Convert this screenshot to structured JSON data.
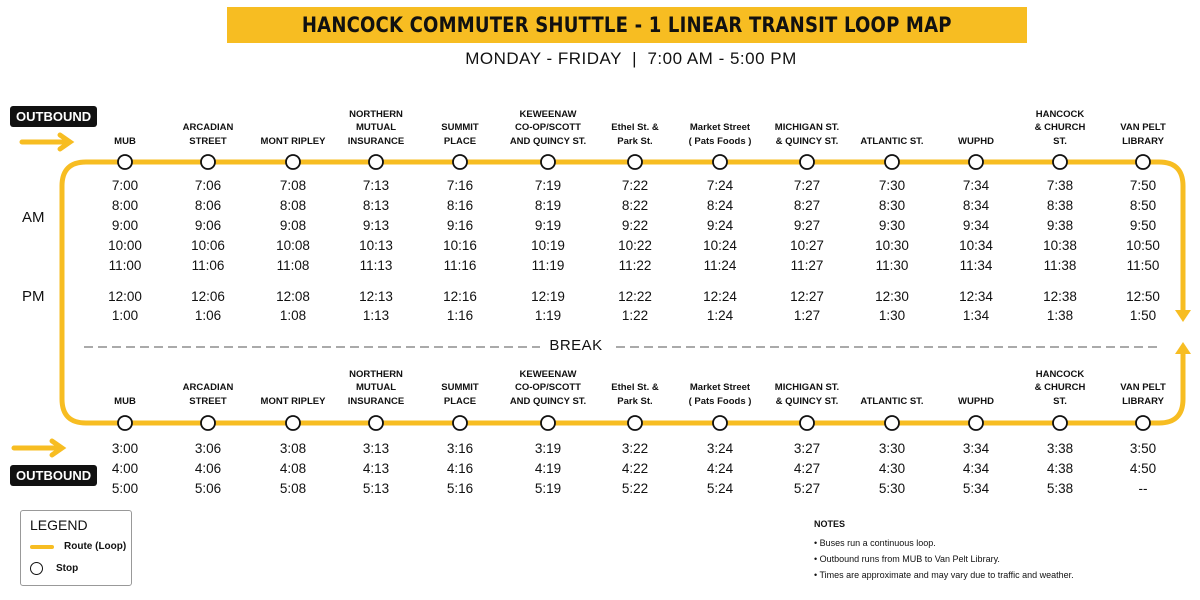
{
  "header": {
    "title": "HANCOCK COMMUTER SHUTTLE - 1 LINEAR TRANSIT LOOP MAP",
    "subtitle": "MONDAY - FRIDAY  |  7:00 AM - 5:00 PM"
  },
  "colors": {
    "route": "#f7bd22",
    "badge": "#111111"
  },
  "outbound_label": "OUTBOUND",
  "period_labels": {
    "am": "AM",
    "pm": "PM"
  },
  "break_label": "BREAK",
  "stops": [
    [
      "MUB"
    ],
    [
      "ARCADIAN",
      "STREET"
    ],
    [
      "MONT RIPLEY"
    ],
    [
      "NORTHERN",
      "MUTUAL",
      "INSURANCE"
    ],
    [
      "SUMMIT",
      "PLACE"
    ],
    [
      "KEWEENAW",
      "CO-OP/SCOTT",
      "AND QUINCY ST."
    ],
    [
      "Ethel St. &",
      "Park St."
    ],
    [
      "Market Street",
      "( Pats Foods )"
    ],
    [
      "MICHIGAN ST.",
      "& QUINCY ST."
    ],
    [
      "ATLANTIC ST."
    ],
    [
      "WUPHD"
    ],
    [
      "HANCOCK",
      "& CHURCH",
      "ST."
    ],
    [
      "VAN PELT",
      "LIBRARY"
    ]
  ],
  "schedule_top": [
    [
      "7:00",
      "7:06",
      "7:08",
      "7:13",
      "7:16",
      "7:19",
      "7:22",
      "7:24",
      "7:27",
      "7:30",
      "7:34",
      "7:38",
      "7:50"
    ],
    [
      "8:00",
      "8:06",
      "8:08",
      "8:13",
      "8:16",
      "8:19",
      "8:22",
      "8:24",
      "8:27",
      "8:30",
      "8:34",
      "8:38",
      "8:50"
    ],
    [
      "9:00",
      "9:06",
      "9:08",
      "9:13",
      "9:16",
      "9:19",
      "9:22",
      "9:24",
      "9:27",
      "9:30",
      "9:34",
      "9:38",
      "9:50"
    ],
    [
      "10:00",
      "10:06",
      "10:08",
      "10:13",
      "10:16",
      "10:19",
      "10:22",
      "10:24",
      "10:27",
      "10:30",
      "10:34",
      "10:38",
      "10:50"
    ],
    [
      "11:00",
      "11:06",
      "11:08",
      "11:13",
      "11:16",
      "11:19",
      "11:22",
      "11:24",
      "11:27",
      "11:30",
      "11:34",
      "11:38",
      "11:50"
    ],
    [
      "12:00",
      "12:06",
      "12:08",
      "12:13",
      "12:16",
      "12:19",
      "12:22",
      "12:24",
      "12:27",
      "12:30",
      "12:34",
      "12:38",
      "12:50"
    ],
    [
      "1:00",
      "1:06",
      "1:08",
      "1:13",
      "1:16",
      "1:19",
      "1:22",
      "1:24",
      "1:27",
      "1:30",
      "1:34",
      "1:38",
      "1:50"
    ]
  ],
  "schedule_bottom": [
    [
      "3:00",
      "3:06",
      "3:08",
      "3:13",
      "3:16",
      "3:19",
      "3:22",
      "3:24",
      "3:27",
      "3:30",
      "3:34",
      "3:38",
      "3:50"
    ],
    [
      "4:00",
      "4:06",
      "4:08",
      "4:13",
      "4:16",
      "4:19",
      "4:22",
      "4:24",
      "4:27",
      "4:30",
      "4:34",
      "4:38",
      "4:50"
    ],
    [
      "5:00",
      "5:06",
      "5:08",
      "5:13",
      "5:16",
      "5:19",
      "5:22",
      "5:24",
      "5:27",
      "5:30",
      "5:34",
      "5:38",
      "--"
    ]
  ],
  "legend": {
    "title": "LEGEND",
    "route": "Route (Loop)",
    "stop": "Stop"
  },
  "notes": {
    "title": "NOTES",
    "items": [
      "• Buses run a continuous loop.",
      "• Outbound runs from MUB to Van Pelt Library.",
      "• Times are approximate and may vary due to traffic and weather."
    ]
  }
}
